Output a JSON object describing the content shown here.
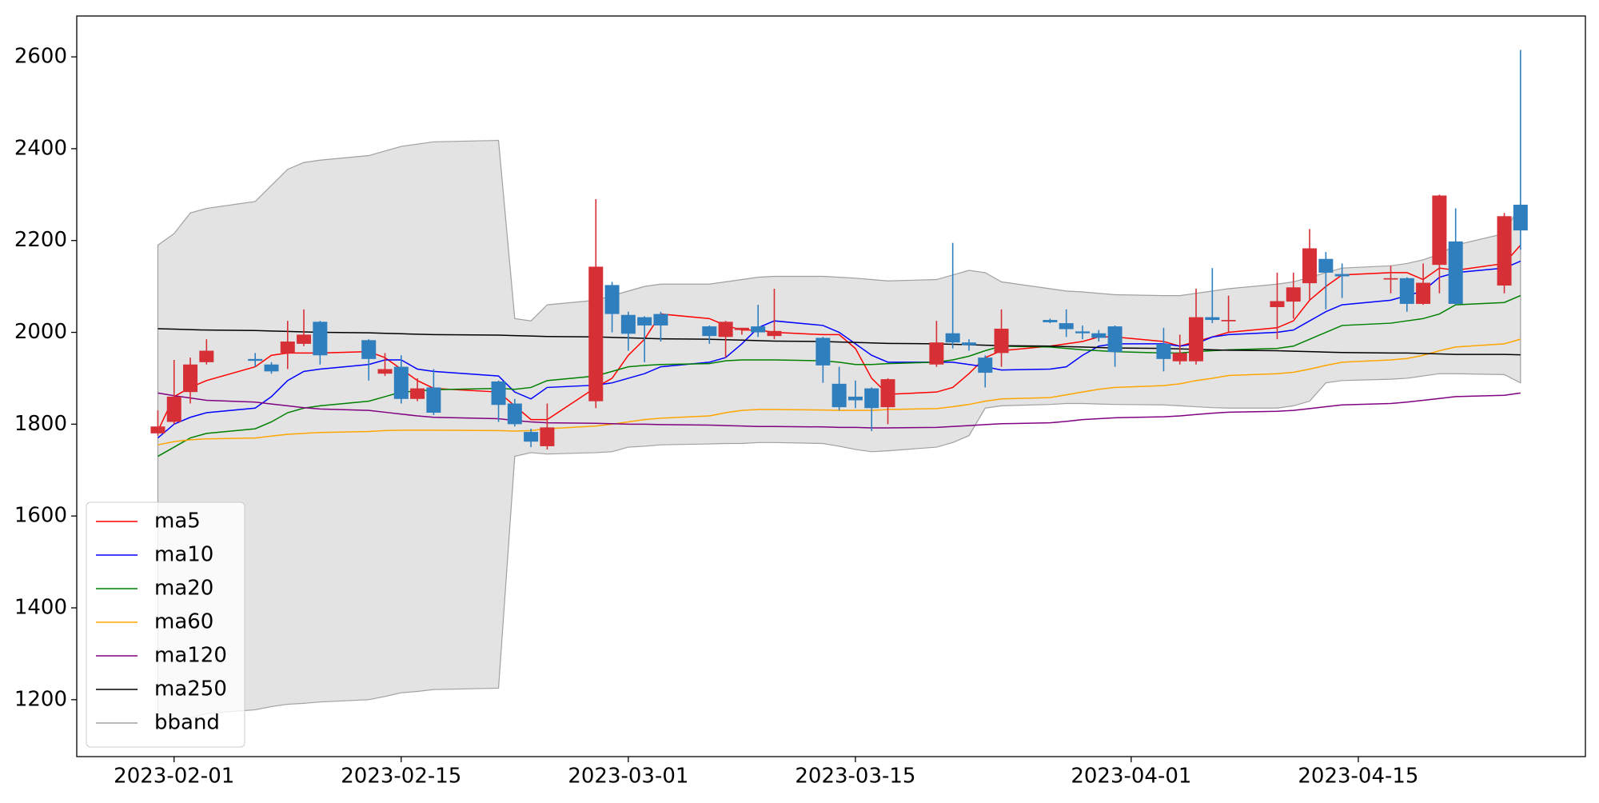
{
  "chart_data": {
    "type": "candlestick",
    "x": [
      "2023-01-31",
      "2023-02-01",
      "2023-02-02",
      "2023-02-03",
      "2023-02-06",
      "2023-02-07",
      "2023-02-08",
      "2023-02-09",
      "2023-02-10",
      "2023-02-13",
      "2023-02-14",
      "2023-02-15",
      "2023-02-16",
      "2023-02-17",
      "2023-02-21",
      "2023-02-22",
      "2023-02-23",
      "2023-02-24",
      "2023-02-27",
      "2023-02-28",
      "2023-03-01",
      "2023-03-02",
      "2023-03-03",
      "2023-03-06",
      "2023-03-07",
      "2023-03-08",
      "2023-03-09",
      "2023-03-10",
      "2023-03-13",
      "2023-03-14",
      "2023-03-15",
      "2023-03-16",
      "2023-03-17",
      "2023-03-20",
      "2023-03-21",
      "2023-03-22",
      "2023-03-23",
      "2023-03-24",
      "2023-03-27",
      "2023-03-28",
      "2023-03-29",
      "2023-03-30",
      "2023-03-31",
      "2023-04-03",
      "2023-04-04",
      "2023-04-05",
      "2023-04-06",
      "2023-04-07",
      "2023-04-10",
      "2023-04-11",
      "2023-04-12",
      "2023-04-13",
      "2023-04-14",
      "2023-04-17",
      "2023-04-18",
      "2023-04-19",
      "2023-04-20",
      "2023-04-21",
      "2023-04-24",
      "2023-04-25"
    ],
    "open": [
      1780,
      1805,
      1870,
      1935,
      1942,
      1930,
      1955,
      1975,
      2023,
      1983,
      1910,
      1925,
      1855,
      1880,
      1893,
      1845,
      1783,
      1752,
      1850,
      2103,
      2038,
      2033,
      2040,
      2013,
      1990,
      2005,
      2013,
      1992,
      1988,
      1888,
      1860,
      1878,
      1837,
      1930,
      1998,
      1978,
      1945,
      1955,
      2027,
      2020,
      2002,
      1998,
      2013,
      1975,
      1937,
      1937,
      2033,
      2024,
      2055,
      2067,
      2107,
      2160,
      2127,
      2115,
      2118,
      2062,
      2147,
      2198,
      2102,
      2278
    ],
    "high": [
      1830,
      1940,
      1945,
      1985,
      1955,
      1935,
      2025,
      2050,
      2025,
      1985,
      1955,
      1950,
      1900,
      1920,
      1895,
      1855,
      1790,
      1845,
      2290,
      2110,
      2045,
      2035,
      2045,
      2015,
      2025,
      2010,
      2060,
      2095,
      1990,
      1925,
      1895,
      1880,
      1900,
      2025,
      2195,
      1985,
      1950,
      2050,
      2030,
      2050,
      2015,
      2005,
      2015,
      2010,
      1995,
      2095,
      2140,
      2080,
      2130,
      2130,
      2225,
      2175,
      2150,
      2145,
      2120,
      2150,
      2300,
      2270,
      2260,
      2615
    ],
    "low": [
      1775,
      1800,
      1845,
      1930,
      1925,
      1910,
      1920,
      1970,
      1930,
      1895,
      1905,
      1845,
      1850,
      1820,
      1805,
      1795,
      1750,
      1745,
      1835,
      2000,
      1960,
      1935,
      1980,
      1975,
      1945,
      1995,
      1990,
      1985,
      1890,
      1830,
      1835,
      1785,
      1800,
      1925,
      1965,
      1960,
      1880,
      1925,
      2020,
      1990,
      1985,
      1980,
      1925,
      1915,
      1930,
      1930,
      2020,
      2000,
      1985,
      2030,
      2070,
      2050,
      2075,
      2085,
      2045,
      2060,
      2085,
      2060,
      2085,
      2180
    ],
    "close": [
      1795,
      1860,
      1930,
      1960,
      1938,
      1915,
      1980,
      1995,
      1950,
      1942,
      1920,
      1855,
      1878,
      1825,
      1842,
      1800,
      1762,
      1793,
      2143,
      2040,
      1997,
      2015,
      2015,
      1992,
      2023,
      2010,
      2000,
      2003,
      1928,
      1837,
      1852,
      1835,
      1898,
      1978,
      1978,
      1972,
      1912,
      2008,
      2022,
      2007,
      1998,
      1988,
      1957,
      1942,
      1955,
      2033,
      2027,
      2027,
      2068,
      2098,
      2183,
      2130,
      2122,
      2118,
      2062,
      2108,
      2298,
      2062,
      2253,
      2222
    ],
    "up_color": "#d62f36",
    "down_color": "#2f7fbf",
    "series": [
      {
        "name": "ma5",
        "color": "red",
        "values": [
          1785,
          1860,
          1880,
          1895,
          1925,
          1950,
          1955,
          1955,
          1955,
          1958,
          1945,
          1920,
          1895,
          1878,
          1870,
          1840,
          1810,
          1810,
          1880,
          1900,
          1950,
          1985,
          2040,
          2030,
          2015,
          2005,
          2005,
          2000,
          1995,
          1995,
          1965,
          1900,
          1865,
          1870,
          1880,
          1910,
          1945,
          1960,
          1970,
          1975,
          1980,
          1990,
          1990,
          1980,
          1970,
          1980,
          1990,
          2000,
          2010,
          2025,
          2070,
          2100,
          2125,
          2130,
          2130,
          2115,
          2140,
          2135,
          2150,
          2190
        ]
      },
      {
        "name": "ma10",
        "color": "blue",
        "values": [
          1770,
          1800,
          1815,
          1825,
          1835,
          1860,
          1895,
          1915,
          1920,
          1930,
          1940,
          1940,
          1920,
          1915,
          1905,
          1870,
          1855,
          1880,
          1885,
          1890,
          1900,
          1910,
          1925,
          1935,
          1945,
          1975,
          2010,
          2025,
          2015,
          2000,
          1975,
          1950,
          1935,
          1935,
          1935,
          1930,
          1925,
          1918,
          1920,
          1925,
          1950,
          1970,
          1975,
          1975,
          1970,
          1975,
          1990,
          1995,
          2000,
          2005,
          2025,
          2045,
          2060,
          2070,
          2080,
          2090,
          2120,
          2130,
          2140,
          2155
        ]
      },
      {
        "name": "ma20",
        "color": "green",
        "values": [
          1730,
          1750,
          1770,
          1780,
          1790,
          1805,
          1825,
          1835,
          1840,
          1850,
          1860,
          1870,
          1872,
          1875,
          1878,
          1876,
          1880,
          1895,
          1905,
          1915,
          1925,
          1928,
          1930,
          1932,
          1938,
          1940,
          1940,
          1940,
          1938,
          1935,
          1930,
          1930,
          1932,
          1935,
          1940,
          1948,
          1960,
          1970,
          1968,
          1965,
          1962,
          1960,
          1958,
          1955,
          1955,
          1958,
          1960,
          1962,
          1965,
          1970,
          1985,
          2000,
          2015,
          2020,
          2025,
          2030,
          2040,
          2060,
          2065,
          2080
        ]
      },
      {
        "name": "ma60",
        "color": "orange",
        "values": [
          1755,
          1762,
          1766,
          1768,
          1770,
          1774,
          1778,
          1780,
          1782,
          1784,
          1786,
          1787,
          1787,
          1787,
          1786,
          1785,
          1786,
          1790,
          1796,
          1800,
          1805,
          1810,
          1813,
          1818,
          1825,
          1830,
          1832,
          1832,
          1831,
          1830,
          1830,
          1830,
          1832,
          1834,
          1838,
          1843,
          1850,
          1855,
          1858,
          1864,
          1870,
          1876,
          1880,
          1884,
          1888,
          1895,
          1900,
          1906,
          1910,
          1913,
          1920,
          1928,
          1935,
          1940,
          1943,
          1950,
          1960,
          1968,
          1975,
          1985
        ]
      },
      {
        "name": "ma120",
        "color": "purple",
        "values": [
          1868,
          1862,
          1857,
          1852,
          1848,
          1844,
          1840,
          1836,
          1833,
          1830,
          1826,
          1822,
          1818,
          1815,
          1812,
          1808,
          1805,
          1803,
          1802,
          1801,
          1800,
          1800,
          1799,
          1798,
          1797,
          1796,
          1795,
          1795,
          1794,
          1793,
          1793,
          1792,
          1792,
          1793,
          1795,
          1797,
          1799,
          1801,
          1803,
          1806,
          1810,
          1812,
          1814,
          1816,
          1818,
          1821,
          1824,
          1826,
          1828,
          1830,
          1834,
          1838,
          1842,
          1845,
          1848,
          1852,
          1856,
          1860,
          1863,
          1868
        ]
      },
      {
        "name": "ma250",
        "color": "black",
        "values": [
          2008,
          2007,
          2006,
          2005,
          2004,
          2003,
          2002,
          2001,
          2000,
          1999,
          1998,
          1997,
          1996,
          1995,
          1994,
          1993,
          1992,
          1991,
          1990,
          1989,
          1988,
          1987,
          1986,
          1985,
          1984,
          1983,
          1982,
          1981,
          1980,
          1979,
          1978,
          1977,
          1976,
          1975,
          1974,
          1973,
          1972,
          1971,
          1970,
          1969,
          1968,
          1967,
          1966,
          1965,
          1964,
          1963,
          1962,
          1961,
          1960,
          1959,
          1958,
          1957,
          1956,
          1955,
          1955,
          1954,
          1953,
          1952,
          1952,
          1951
        ]
      }
    ],
    "band": {
      "name": "bband",
      "color": "#e3e3e3",
      "edge_color": "#a0a0a0",
      "upper": [
        2190,
        2215,
        2260,
        2270,
        2285,
        2320,
        2355,
        2370,
        2375,
        2385,
        2395,
        2405,
        2410,
        2415,
        2418,
        2030,
        2025,
        2060,
        2070,
        2080,
        2090,
        2100,
        2105,
        2105,
        2110,
        2115,
        2120,
        2122,
        2122,
        2120,
        2118,
        2115,
        2112,
        2115,
        2125,
        2135,
        2130,
        2110,
        2095,
        2090,
        2088,
        2085,
        2082,
        2080,
        2080,
        2085,
        2090,
        2095,
        2105,
        2110,
        2120,
        2130,
        2140,
        2145,
        2150,
        2158,
        2170,
        2190,
        2215,
        2280
      ],
      "lower": [
        1150,
        1152,
        1160,
        1170,
        1178,
        1185,
        1190,
        1192,
        1195,
        1200,
        1207,
        1215,
        1218,
        1222,
        1225,
        1730,
        1738,
        1735,
        1738,
        1740,
        1750,
        1752,
        1755,
        1757,
        1758,
        1758,
        1760,
        1760,
        1758,
        1752,
        1745,
        1740,
        1742,
        1750,
        1760,
        1775,
        1835,
        1840,
        1843,
        1845,
        1845,
        1844,
        1843,
        1842,
        1840,
        1838,
        1836,
        1835,
        1835,
        1840,
        1850,
        1890,
        1895,
        1898,
        1900,
        1905,
        1910,
        1910,
        1908,
        1890
      ]
    },
    "xlim": [
      "2023-01-26",
      "2023-04-29"
    ],
    "ylim": [
      1076,
      2689
    ],
    "xticks": [
      "2023-02-01",
      "2023-02-15",
      "2023-03-01",
      "2023-03-15",
      "2023-04-01",
      "2023-04-15"
    ],
    "yticks": [
      1200,
      1400,
      1600,
      1800,
      2000,
      2200,
      2400,
      2600
    ],
    "legend": "lower left"
  }
}
